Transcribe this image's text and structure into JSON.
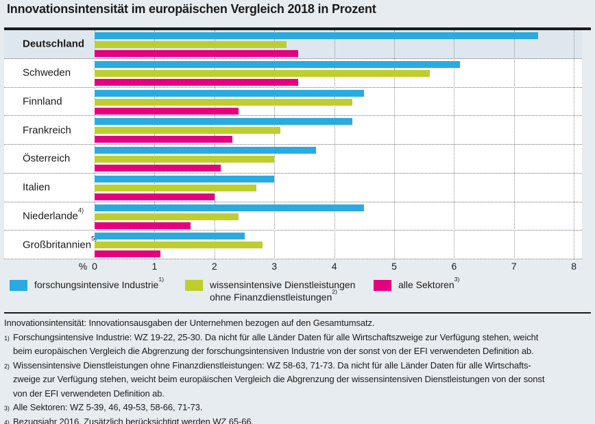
{
  "title": "Innovationsintensität im europäischen Vergleich 2018 in Prozent",
  "chart_data": {
    "type": "bar",
    "orientation": "horizontal",
    "unit_label": "%",
    "xlim": [
      0,
      8
    ],
    "ticks": [
      "0",
      "1",
      "2",
      "3",
      "4",
      "5",
      "6",
      "7",
      "8"
    ],
    "grid": "dotted-vertical",
    "highlighted_category": "Deutschland",
    "categories": [
      {
        "label": "Deutschland",
        "sup": "",
        "bold": true,
        "highlighted": true
      },
      {
        "label": "Schweden",
        "sup": "",
        "bold": false,
        "highlighted": false
      },
      {
        "label": "Finnland",
        "sup": "",
        "bold": false,
        "highlighted": false
      },
      {
        "label": "Frankreich",
        "sup": "",
        "bold": false,
        "highlighted": false
      },
      {
        "label": "Österreich",
        "sup": "",
        "bold": false,
        "highlighted": false
      },
      {
        "label": "Italien",
        "sup": "",
        "bold": false,
        "highlighted": false
      },
      {
        "label": "Niederlande",
        "sup": "4)",
        "bold": false,
        "highlighted": false
      },
      {
        "label": "Großbritannien",
        "sup": "5)",
        "bold": false,
        "highlighted": false
      }
    ],
    "series": [
      {
        "key": "forschungsintensive-industrie",
        "name": "forschungsintensive Industrie",
        "sup": "1)",
        "color": "#29ABE2",
        "values": [
          7.4,
          6.1,
          4.5,
          4.3,
          3.7,
          3.0,
          4.5,
          2.5
        ]
      },
      {
        "key": "wissensintensive-dienstleistungen",
        "name": "wissensintensive Dienstleistungen ohne Finanzdienstleistungen",
        "sup": "2)",
        "color": "#BDCE2E",
        "values": [
          3.2,
          5.6,
          4.3,
          3.1,
          3.0,
          2.7,
          2.4,
          2.8
        ]
      },
      {
        "key": "alle-sektoren",
        "name": "alle Sektoren",
        "sup": "3)",
        "color": "#E5007D",
        "values": [
          3.4,
          3.4,
          2.4,
          2.3,
          2.1,
          2.0,
          1.6,
          1.1
        ]
      }
    ]
  },
  "legend": {
    "items": [
      {
        "color": "#29ABE2",
        "line1": "forschungsintensive Industrie",
        "line1_sup": "1)",
        "line2": "",
        "line2_sup": ""
      },
      {
        "color": "#BDCE2E",
        "line1": "wissensintensive Dienstleistungen",
        "line1_sup": "",
        "line2": "ohne Finanzdienstleistungen",
        "line2_sup": "2)"
      },
      {
        "color": "#E5007D",
        "line1": "alle Sektoren",
        "line1_sup": "3)",
        "line2": "",
        "line2_sup": ""
      }
    ]
  },
  "footnotes": [
    {
      "marker": "",
      "lines": [
        "Innovationsintensität: Innovationsausgaben der Unternehmen bezogen auf den Gesamtumsatz."
      ]
    },
    {
      "marker": "1)",
      "lines": [
        "Forschungsintensive Industrie: WZ 19-22, 25-30. Da nicht für alle Länder Daten für alle Wirtschaftszweige zur Verfügung stehen, weicht",
        "beim europäischen Vergleich die Abgrenzung der forschungsintensiven Industrie von der sonst von der EFI verwendeten Definition ab."
      ]
    },
    {
      "marker": "2)",
      "lines": [
        "Wissensintensive Dienstleistungen ohne Finanzdienstleistungen: WZ 58-63, 71-73. Da nicht für alle Länder Daten für alle Wirtschafts-",
        "zweige zur Verfügung stehen, weicht beim europäischen Vergleich die Abgrenzung der wissensintensiven Dienstleistungen von der sonst",
        "von der EFI verwendeten Definition ab."
      ]
    },
    {
      "marker": "3)",
      "lines": [
        "Alle Sektoren: WZ 5-39, 46, 49-53, 58-66, 71-73."
      ]
    },
    {
      "marker": "4)",
      "lines": [
        "Bezugsjahr 2016. Zusätzlich berücksichtigt werden WZ 65-66."
      ]
    }
  ],
  "colors": {
    "blue": "#29ABE2",
    "green": "#BDCE2E",
    "magenta": "#E5007D",
    "page_bg": "#E7ECF0",
    "highlight_row_bg": "#DFE7EE",
    "text": "#1A1A1A"
  }
}
